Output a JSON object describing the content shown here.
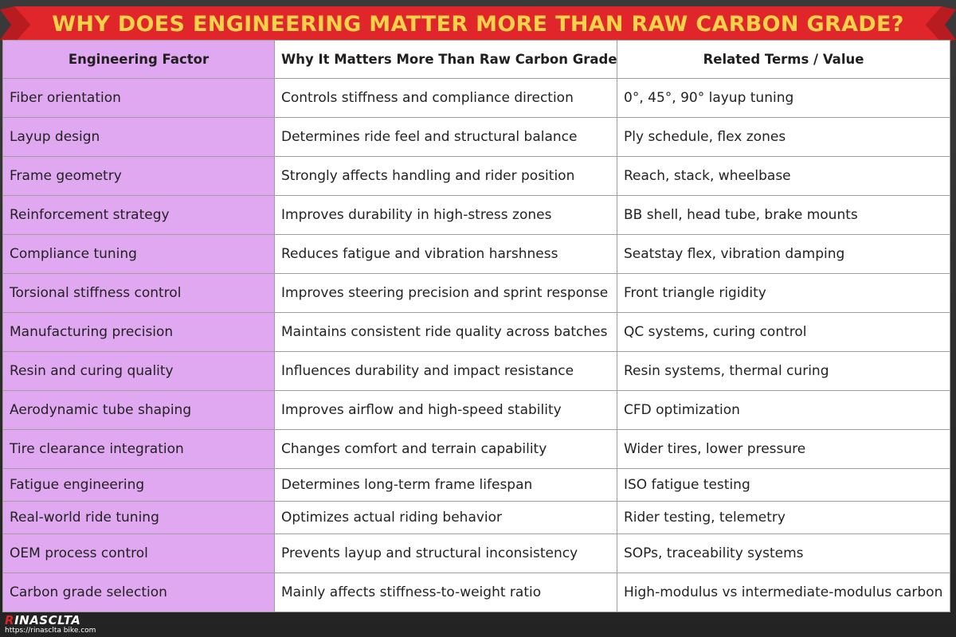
{
  "title": "WHY DOES ENGINEERING MATTER MORE THAN RAW CARBON GRADE?",
  "colors": {
    "banner_red": "#e0262b",
    "title_yellow": "#f5d24a",
    "factor_column": "#e0a8f0"
  },
  "table": {
    "headers": [
      "Engineering Factor",
      "Why It Matters More Than Raw Carbon Grade",
      "Related Terms / Value"
    ],
    "rows": [
      [
        "Fiber orientation",
        "Controls stiffness and compliance direction",
        "0°, 45°, 90° layup tuning"
      ],
      [
        "Layup design",
        "Determines ride feel and structural balance",
        "Ply schedule, flex zones"
      ],
      [
        "Frame geometry",
        "Strongly affects handling and rider position",
        "Reach, stack, wheelbase"
      ],
      [
        "Reinforcement strategy",
        "Improves durability in high-stress zones",
        "BB shell, head tube, brake mounts"
      ],
      [
        "Compliance tuning",
        "Reduces fatigue and vibration harshness",
        "Seatstay flex, vibration damping"
      ],
      [
        "Torsional stiffness control",
        "Improves steering precision and sprint response",
        "Front triangle rigidity"
      ],
      [
        "Manufacturing precision",
        "Maintains consistent ride quality across batches",
        "QC systems, curing control"
      ],
      [
        "Resin and curing quality",
        "Influences durability and impact resistance",
        "Resin systems, thermal curing"
      ],
      [
        "Aerodynamic tube shaping",
        "Improves airflow and high-speed stability",
        "CFD optimization"
      ],
      [
        "Tire clearance integration",
        "Changes comfort and terrain capability",
        "Wider tires, lower pressure"
      ],
      [
        "Fatigue engineering",
        "Determines long-term frame lifespan",
        "ISO fatigue testing"
      ],
      [
        "Real-world ride tuning",
        "Optimizes actual riding behavior",
        "Rider testing, telemetry"
      ],
      [
        "OEM process control",
        "Prevents layup and structural inconsistency",
        "SOPs, traceability systems"
      ],
      [
        "Carbon grade selection",
        "Mainly affects stiffness-to-weight ratio",
        "High-modulus vs intermediate-modulus carbon"
      ]
    ]
  },
  "logo": {
    "brand_first": "R",
    "brand_rest": "INASCLTA",
    "url": "https://rinasclta bike.com"
  }
}
